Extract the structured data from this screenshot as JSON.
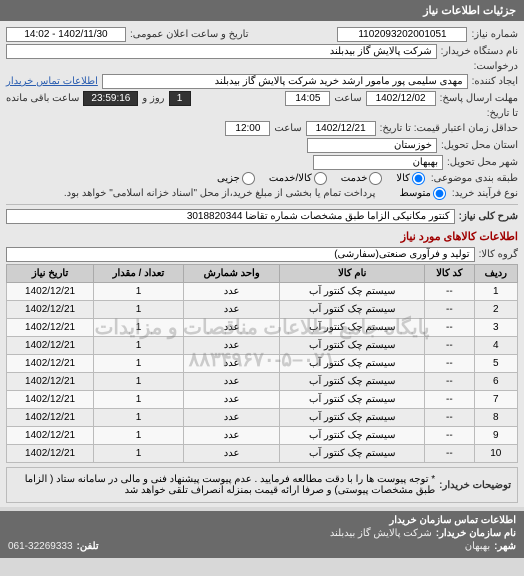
{
  "header": "جزئیات اطلاعات نیاز",
  "fields": {
    "reqno_lbl": "شماره نیاز:",
    "reqno": "1102093202001051",
    "pubdate_lbl": "تاریخ و ساعت اعلان عمومی:",
    "pubdate": "1402/11/30 - 14:02",
    "buyer_lbl": "نام دستگاه خریدار:",
    "buyer": "شرکت پالایش گاز بیدبلند",
    "request_lbl": "درخواست:",
    "creator_lbl": "ایجاد کننده:",
    "creator": "مهدی سلیمی پور مامور ارشد خرید شرکت پالایش گاز بیدبلند",
    "contact_lbl": "اطلاعات تماس خریدار",
    "reply_deadline_lbl": "مهلت ارسال پاسخ:",
    "reply_date": "1402/12/02",
    "reply_time_lbl": "ساعت",
    "reply_time": "14:05",
    "remain_lbl": "روز و",
    "remain_days": "1",
    "remain_time": "23:59:16",
    "remain_suffix": "ساعت باقی مانده",
    "todate_lbl": "تا تاریخ:",
    "price_valid_lbl": "حداقل زمان اعتبار قیمت: تا تاریخ:",
    "price_valid_date": "1402/12/21",
    "price_valid_time": "12:00",
    "province_lbl": "استان محل تحویل:",
    "province": "خوزستان",
    "city_lbl": "شهر محل تحویل:",
    "city": "بهبهان",
    "category_lbl": "طبقه بندی موضوعی:",
    "cat_kala": "کالا",
    "cat_khadamat": "خدمت",
    "cat_kalakh": "کالا/خدمت",
    "cat_ejare": "جزیی",
    "buytype_lbl": "نوع فرآیند خرید:",
    "buytype_opt": "متوسط",
    "buytype_note": "پرداخت تمام یا بخشی از مبلغ خرید،از محل \"اسناد خزانه اسلامی\" خواهد بود.",
    "need_title_lbl": "شرح کلی نیاز:",
    "need_title": "کنتور مکانیکی الزاما طبق مشخصات شماره تقاضا 3018820344",
    "items_head": "اطلاعات کالاهای مورد نیاز",
    "group_lbl": "گروه کالا:",
    "group": "تولید و فرآوری صنعتی(سفارشی)"
  },
  "table": {
    "cols": [
      "ردیف",
      "کد کالا",
      "نام کالا",
      "واحد شمارش",
      "تعداد / مقدار",
      "تاریخ نیاز"
    ],
    "rows": [
      [
        "1",
        "--",
        "سیستم چک کنتور آب",
        "عدد",
        "1",
        "1402/12/21"
      ],
      [
        "2",
        "--",
        "سیستم چک کنتور آب",
        "عدد",
        "1",
        "1402/12/21"
      ],
      [
        "3",
        "--",
        "سیستم چک کنتور آب",
        "عدد",
        "1",
        "1402/12/21"
      ],
      [
        "4",
        "--",
        "سیستم چک کنتور آب",
        "عدد",
        "1",
        "1402/12/21"
      ],
      [
        "5",
        "--",
        "سیستم چک کنتور آب",
        "عدد",
        "1",
        "1402/12/21"
      ],
      [
        "6",
        "--",
        "سیستم چک کنتور آب",
        "عدد",
        "1",
        "1402/12/21"
      ],
      [
        "7",
        "--",
        "سیستم چک کنتور آب",
        "عدد",
        "1",
        "1402/12/21"
      ],
      [
        "8",
        "--",
        "سیستم چک کنتور آب",
        "عدد",
        "1",
        "1402/12/21"
      ],
      [
        "9",
        "--",
        "سیستم چک کنتور آب",
        "عدد",
        "1",
        "1402/12/21"
      ],
      [
        "10",
        "--",
        "سیستم چک کنتور آب",
        "عدد",
        "1",
        "1402/12/21"
      ]
    ]
  },
  "watermark": {
    "line1": "پایگاه جامع اطلاعات مناقصات و مزایدات",
    "line2": "۰۲۱–۸۸۳۴۹۶۷۰-۵"
  },
  "note": {
    "lbl": "توضیحات خریدار:",
    "text": "* توجه پیوست ها را با دقت مطالعه فرمایید . عدم پیوست پیشنهاد فنی و مالی در سامانه ستاد ( الزاما طبق مشخصات پیوستی) و صرفا ارائه قیمت بمنزله انصراف تلقی خواهد شد"
  },
  "footer": {
    "head": "اطلاعات تماس سازمان خریدار",
    "org_lbl": "نام سازمان خریدار:",
    "org": "شرکت پالایش گاز بیدبلند",
    "city_lbl": "شهر:",
    "city": "بهبهان",
    "tel_lbl": "تلفن:",
    "tel": "061-32269333"
  }
}
